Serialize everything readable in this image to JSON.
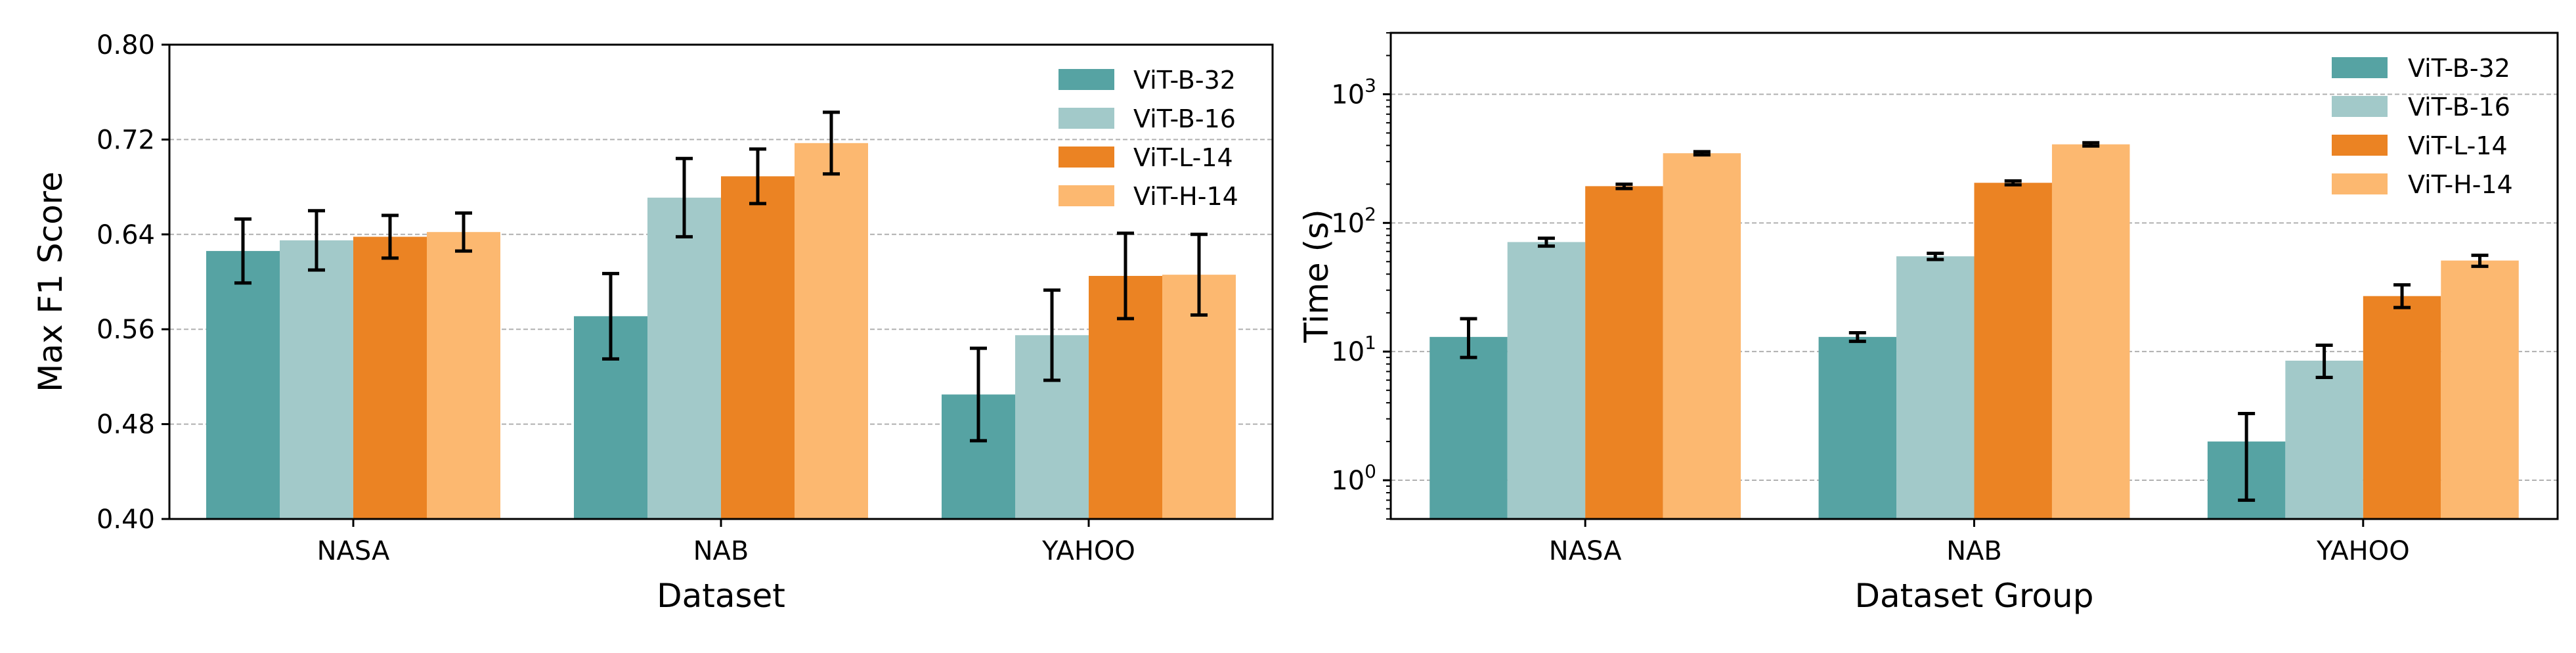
{
  "colors": {
    "ViT-B-32": "#56a3a3",
    "ViT-B-16": "#a2c9c9",
    "ViT-L-14": "#eb8323",
    "ViT-H-14": "#fcb870",
    "grid": "#b0b0b0",
    "axis": "#000000"
  },
  "chart_data": [
    {
      "type": "bar",
      "title": "",
      "xlabel": "Dataset",
      "ylabel": "Max F1 Score",
      "categories": [
        "NASA",
        "NAB",
        "YAHOO"
      ],
      "ylim": [
        0.4,
        0.8
      ],
      "yticks": [
        0.4,
        0.48,
        0.56,
        0.64,
        0.72,
        0.8
      ],
      "ytick_labels": [
        "0.40",
        "0.48",
        "0.56",
        "0.64",
        "0.72",
        "0.80"
      ],
      "yscale": "linear",
      "grid": "y-dashed",
      "legend": "top-right",
      "series": [
        {
          "name": "ViT-B-32",
          "values": [
            0.626,
            0.571,
            0.505
          ],
          "errors": [
            0.027,
            0.036,
            0.039
          ]
        },
        {
          "name": "ViT-B-16",
          "values": [
            0.635,
            0.671,
            0.555
          ],
          "errors": [
            0.025,
            0.033,
            0.038
          ]
        },
        {
          "name": "ViT-L-14",
          "values": [
            0.638,
            0.689,
            0.605
          ],
          "errors": [
            0.018,
            0.023,
            0.036
          ]
        },
        {
          "name": "ViT-H-14",
          "values": [
            0.642,
            0.717,
            0.606
          ],
          "errors": [
            0.016,
            0.026,
            0.034
          ]
        }
      ]
    },
    {
      "type": "bar",
      "title": "",
      "xlabel": "Dataset Group",
      "ylabel": "Time (s)",
      "categories": [
        "NASA",
        "NAB",
        "YAHOO"
      ],
      "ylim": [
        0.5,
        3000
      ],
      "yscale": "log",
      "yticks": [
        1,
        10,
        100,
        1000
      ],
      "ytick_base": "10",
      "ytick_exponents": [
        "0",
        "1",
        "2",
        "3"
      ],
      "grid": "y-dashed",
      "legend": "top-right",
      "series": [
        {
          "name": "ViT-B-32",
          "values": [
            13.0,
            13.0,
            2.0
          ],
          "err_low": [
            9.0,
            12.0,
            0.7
          ],
          "err_high": [
            18.0,
            14.0,
            3.3
          ]
        },
        {
          "name": "ViT-B-16",
          "values": [
            71.0,
            55.0,
            8.5
          ],
          "err_low": [
            66.0,
            52.0,
            6.3
          ],
          "err_high": [
            76.0,
            58.0,
            11.2
          ]
        },
        {
          "name": "ViT-L-14",
          "values": [
            193.0,
            205.0,
            27.0
          ],
          "err_low": [
            185.0,
            198.0,
            22.0
          ],
          "err_high": [
            200.0,
            212.0,
            33.0
          ]
        },
        {
          "name": "ViT-H-14",
          "values": [
            348.0,
            408.0,
            51.0
          ],
          "err_low": [
            338.0,
            396.0,
            46.0
          ],
          "err_high": [
            358.0,
            420.0,
            56.0
          ]
        }
      ]
    }
  ]
}
